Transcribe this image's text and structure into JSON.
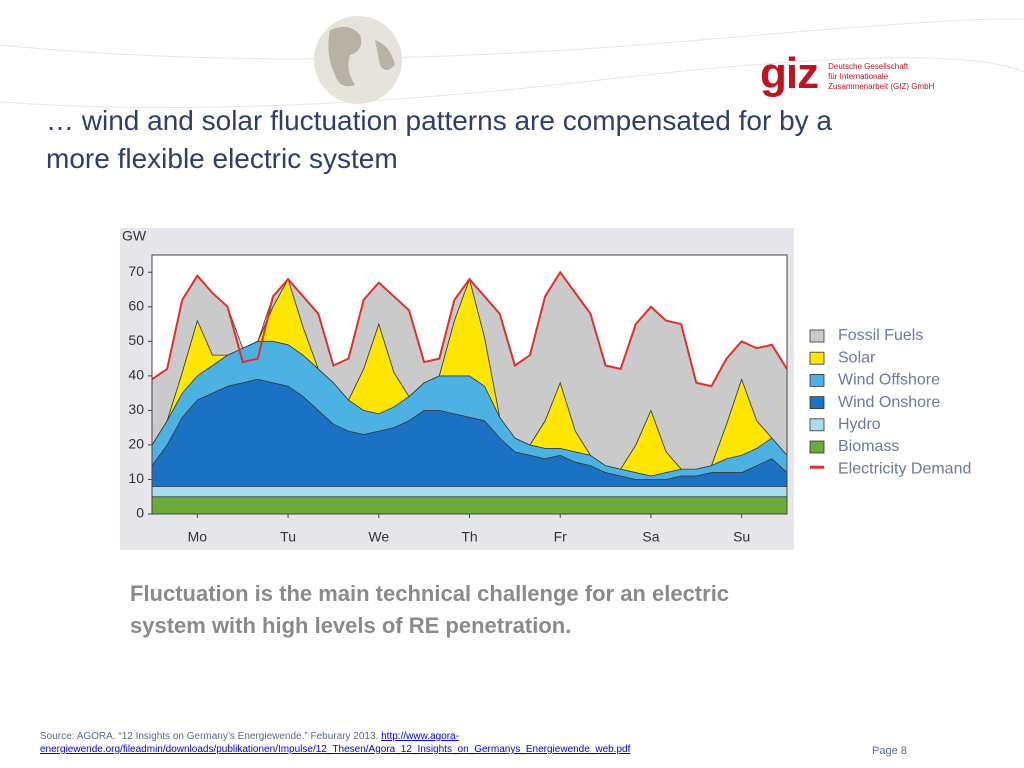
{
  "header": {
    "title": "… wind and solar fluctuation patterns are compensated for by a more flexible electric system",
    "logo": "giz",
    "logo_lines": [
      "Deutsche Gesellschaft",
      "für Internationale",
      "Zusammenarbeit (GIZ) GmbH"
    ]
  },
  "chart_data": {
    "type": "stacked_area",
    "ylabel": "GW",
    "x": [
      0,
      4,
      8,
      12,
      16,
      20,
      24,
      28,
      32,
      36,
      40,
      44,
      48,
      52,
      56,
      60,
      64,
      68,
      72,
      76,
      80,
      84,
      88,
      92,
      96,
      100,
      104,
      108,
      112,
      116,
      120,
      124,
      128,
      132,
      136,
      140,
      144,
      148,
      152,
      156,
      160,
      164,
      168
    ],
    "xlim": [
      0,
      168
    ],
    "xticks": [
      {
        "value": 12,
        "label": "Mo"
      },
      {
        "value": 36,
        "label": "Tu"
      },
      {
        "value": 60,
        "label": "We"
      },
      {
        "value": 84,
        "label": "Th"
      },
      {
        "value": 108,
        "label": "Fr"
      },
      {
        "value": 132,
        "label": "Sa"
      },
      {
        "value": 156,
        "label": "Su"
      }
    ],
    "ylim": [
      0,
      75
    ],
    "yticks": [
      0,
      10,
      20,
      30,
      40,
      50,
      60,
      70
    ],
    "legend": "right",
    "series": [
      {
        "name": "Fossil Fuels",
        "color": "#cacaca",
        "values": [
          19,
          15,
          21,
          13,
          18,
          14,
          0,
          0,
          3,
          0,
          9,
          16,
          5,
          12,
          20,
          12,
          22,
          25,
          6,
          5,
          6,
          0,
          12,
          30,
          21,
          26,
          36,
          32,
          40,
          41,
          29,
          29,
          35,
          30,
          38,
          42,
          25,
          23,
          19,
          11,
          21,
          27,
          25
        ]
      },
      {
        "name": "Solar",
        "color": "#ffe600",
        "values": [
          0,
          0,
          6,
          16,
          3,
          0,
          0,
          0,
          10,
          19,
          8,
          0,
          0,
          0,
          12,
          26,
          10,
          0,
          0,
          0,
          16,
          28,
          14,
          0,
          0,
          0,
          8,
          19,
          6,
          0,
          0,
          0,
          8,
          19,
          6,
          0,
          0,
          0,
          10,
          22,
          8,
          0,
          0
        ]
      },
      {
        "name": "Wind Offshore",
        "color": "#4cb2e4",
        "values": [
          6,
          7,
          7,
          7,
          8,
          9,
          10,
          11,
          12,
          12,
          12,
          12,
          12,
          9,
          7,
          5,
          6,
          7,
          8,
          10,
          11,
          12,
          10,
          6,
          4,
          3,
          3,
          2,
          3,
          3,
          2,
          2,
          2,
          1,
          2,
          2,
          2,
          2,
          4,
          5,
          5,
          6,
          5
        ]
      },
      {
        "name": "Wind Onshore",
        "color": "#1b72c4",
        "values": [
          6,
          12,
          20,
          25,
          27,
          29,
          30,
          31,
          30,
          29,
          26,
          22,
          18,
          16,
          15,
          16,
          17,
          19,
          22,
          22,
          21,
          20,
          19,
          14,
          10,
          9,
          8,
          9,
          7,
          6,
          4,
          3,
          2,
          2,
          2,
          3,
          3,
          4,
          4,
          4,
          6,
          8,
          4
        ]
      },
      {
        "name": "Hydro",
        "color": "#a8dcef",
        "values": [
          3,
          3,
          3,
          3,
          3,
          3,
          3,
          3,
          3,
          3,
          3,
          3,
          3,
          3,
          3,
          3,
          3,
          3,
          3,
          3,
          3,
          3,
          3,
          3,
          3,
          3,
          3,
          3,
          3,
          3,
          3,
          3,
          3,
          3,
          3,
          3,
          3,
          3,
          3,
          3,
          3,
          3,
          3
        ]
      },
      {
        "name": "Biomass",
        "color": "#6aab3a",
        "values": [
          5,
          5,
          5,
          5,
          5,
          5,
          5,
          5,
          5,
          5,
          5,
          5,
          5,
          5,
          5,
          5,
          5,
          5,
          5,
          5,
          5,
          5,
          5,
          5,
          5,
          5,
          5,
          5,
          5,
          5,
          5,
          5,
          5,
          5,
          5,
          5,
          5,
          5,
          5,
          5,
          5,
          5,
          5
        ]
      }
    ],
    "line_series": {
      "name": "Electricity Demand",
      "color": "#e03028",
      "values": [
        39,
        42,
        62,
        69,
        64,
        60,
        44,
        45,
        63,
        68,
        63,
        58,
        43,
        45,
        62,
        67,
        63,
        59,
        44,
        45,
        62,
        68,
        63,
        58,
        43,
        46,
        63,
        70,
        64,
        58,
        43,
        42,
        55,
        60,
        56,
        55,
        38,
        37,
        45,
        50,
        48,
        49,
        42
      ]
    }
  },
  "caption": "Fluctuation is the main technical challenge for an electric system with high levels of RE penetration.",
  "footer": {
    "source": "Source: AGORA. “12 Insights on Germany’s Energiewende.” Feburary 2013.",
    "link": "http://www.agora-energiewende.org/fileadmin/downloads/publikationen/Impulse/12_Thesen/Agora_12_Insights_on_Germanys_Energiewende_web.pdf",
    "page": "Page 8"
  }
}
